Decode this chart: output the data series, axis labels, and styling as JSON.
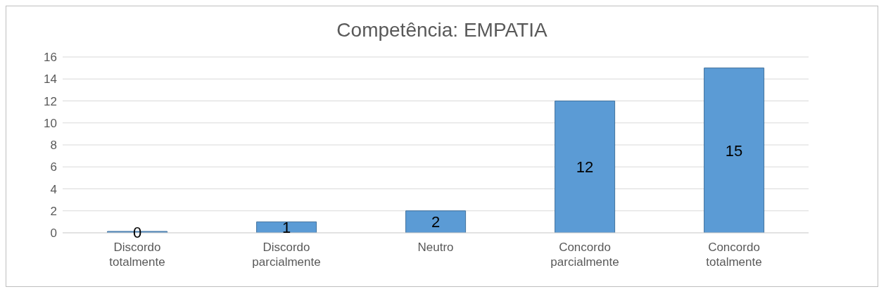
{
  "chart_data": {
    "type": "bar",
    "title": "Competência: EMPATIA",
    "categories": [
      "Discordo totalmente",
      "Discordo parcialmente",
      "Neutro",
      "Concordo parcialmente",
      "Concordo totalmente"
    ],
    "values": [
      0,
      1,
      2,
      12,
      15
    ],
    "color": "#5b9bd5",
    "ylim": [
      0,
      16
    ],
    "yticks": [
      0,
      2,
      4,
      6,
      8,
      10,
      12,
      14,
      16
    ],
    "grid": "y",
    "data_labels": true
  }
}
